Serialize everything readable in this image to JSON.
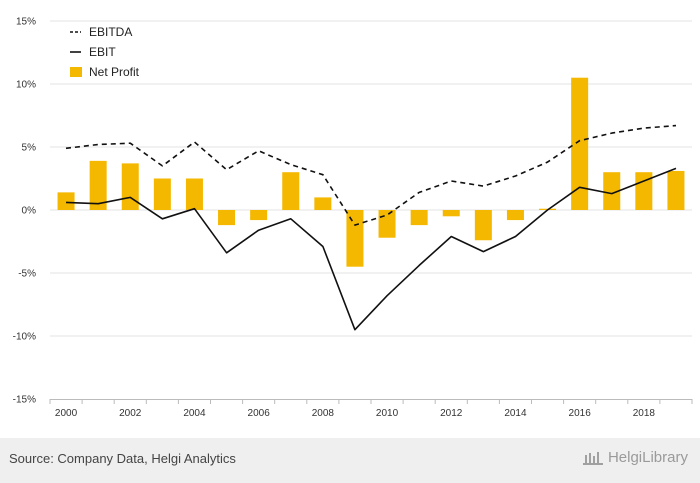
{
  "chart_data": {
    "type": "bar",
    "x": [
      2000,
      2001,
      2002,
      2003,
      2004,
      2005,
      2006,
      2007,
      2008,
      2009,
      2010,
      2011,
      2012,
      2013,
      2014,
      2015,
      2016,
      2017,
      2018,
      2019
    ],
    "x_tick_labels": [
      "2000",
      "2002",
      "2004",
      "2006",
      "2008",
      "2010",
      "2012",
      "2014",
      "2016",
      "2018"
    ],
    "y_tick_labels": [
      "15%",
      "10%",
      "5%",
      "0%",
      "-5%",
      "-10%",
      "-15%"
    ],
    "ylim": [
      -15,
      15
    ],
    "y_unit": "%",
    "grid": true,
    "legend_position": "top-left",
    "series": [
      {
        "name": "EBITDA",
        "type": "line",
        "style": "dashed",
        "color": "#111111",
        "values": [
          4.9,
          5.2,
          5.3,
          3.5,
          5.4,
          3.2,
          4.7,
          3.6,
          2.8,
          -1.2,
          -0.4,
          1.4,
          2.3,
          1.9,
          2.7,
          3.8,
          5.5,
          6.1,
          6.5,
          6.7
        ]
      },
      {
        "name": "EBIT",
        "type": "line",
        "style": "solid",
        "color": "#111111",
        "values": [
          0.6,
          0.5,
          1.0,
          -0.7,
          0.1,
          -3.4,
          -1.6,
          -0.7,
          -2.9,
          -9.5,
          -6.8,
          -4.4,
          -2.1,
          -3.3,
          -2.1,
          0.0,
          1.8,
          1.3,
          2.3,
          3.3
        ]
      },
      {
        "name": "Net Profit",
        "type": "bar",
        "color": "#f5b800",
        "values": [
          1.4,
          3.9,
          3.7,
          2.5,
          2.5,
          -1.2,
          -0.8,
          3.0,
          1.0,
          -4.5,
          -2.2,
          -1.2,
          -0.5,
          -2.4,
          -0.8,
          0.1,
          10.5,
          3.0,
          3.0,
          3.1
        ]
      }
    ]
  },
  "footer": {
    "source": "Source: Company Data, Helgi Analytics",
    "brand": "HelgiLibrary"
  },
  "colors": {
    "grid": "#e3e3e3",
    "bar": "#f5b800",
    "line": "#111111",
    "footer_bg": "#efefef"
  }
}
